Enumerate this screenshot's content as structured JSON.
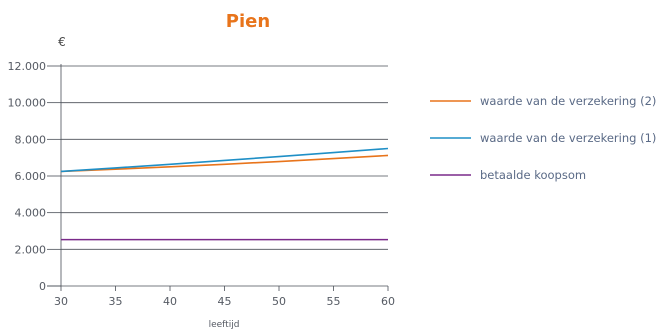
{
  "chart_data": {
    "type": "line",
    "title": "Pien",
    "ylabel": "€",
    "xlabel": "leeftijd",
    "x": [
      30,
      35,
      40,
      45,
      50,
      55,
      60
    ],
    "xlim": [
      30,
      60
    ],
    "ylim": [
      0,
      12000
    ],
    "yticks": [
      0,
      2000,
      4000,
      6000,
      8000,
      10000,
      12000
    ],
    "ytick_labels": [
      "0",
      "2.000",
      "4.000",
      "6.000",
      "8.000",
      "10.000",
      "12.000"
    ],
    "xtick_labels": [
      "30",
      "35",
      "40",
      "45",
      "50",
      "55",
      "60"
    ],
    "grid": true,
    "legend_position": "right",
    "series": [
      {
        "name": "waarde van de verzekering (2)",
        "color": "#e8741b",
        "values": [
          6250,
          6370,
          6500,
          6640,
          6790,
          6950,
          7120
        ]
      },
      {
        "name": "waarde van de verzekering (1)",
        "color": "#1f8fc6",
        "values": [
          6250,
          6440,
          6640,
          6850,
          7060,
          7280,
          7500
        ]
      },
      {
        "name": "betaalde koopsom",
        "color": "#7a2a8a",
        "values": [
          2530,
          2530,
          2530,
          2530,
          2530,
          2530,
          2530
        ]
      }
    ],
    "title_color": "#e8741b"
  }
}
